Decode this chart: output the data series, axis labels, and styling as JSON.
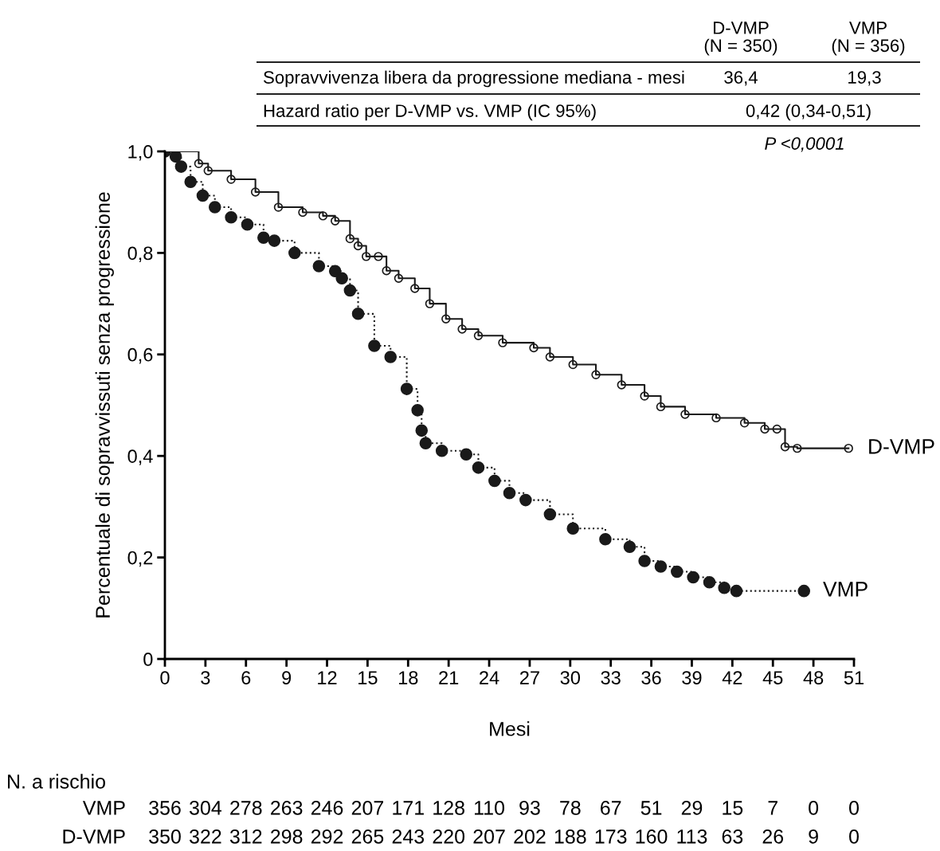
{
  "chart_data": {
    "type": "step",
    "xlabel": "Mesi",
    "ylabel": "Percentuale di sopravvissuti senza progressione",
    "xlim": [
      0,
      51
    ],
    "ylim": [
      0,
      1
    ],
    "xticks": [
      0,
      3,
      6,
      9,
      12,
      15,
      18,
      21,
      24,
      27,
      30,
      33,
      36,
      39,
      42,
      45,
      48,
      51
    ],
    "yticks": [
      {
        "value": 0,
        "label": "0"
      },
      {
        "value": 0.2,
        "label": "0,2"
      },
      {
        "value": 0.4,
        "label": "0,4"
      },
      {
        "value": 0.6,
        "label": "0,6"
      },
      {
        "value": 0.8,
        "label": "0,8"
      },
      {
        "value": 1,
        "label": "1,0"
      }
    ],
    "grid": false,
    "legend": false,
    "series": [
      {
        "name": "D-VMP",
        "color": "#1a1a1a",
        "marker": "circle",
        "line_style": "solid",
        "x": [
          0,
          2.5,
          3.2,
          4.9,
          6.7,
          8.4,
          10.2,
          11.7,
          12.6,
          13.7,
          14.3,
          14.9,
          15.8,
          16.4,
          17.3,
          18.5,
          19.6,
          20.8,
          22.0,
          23.2,
          25,
          27.3,
          28.5,
          30.2,
          31.9,
          33.8,
          35.5,
          36.7,
          38.5,
          40.8,
          42.9,
          44.4,
          45.3,
          45.9,
          46.8,
          50.6
        ],
        "values": [
          1.0,
          0.976,
          0.962,
          0.945,
          0.92,
          0.89,
          0.88,
          0.873,
          0.863,
          0.828,
          0.814,
          0.793,
          0.793,
          0.765,
          0.75,
          0.73,
          0.7,
          0.67,
          0.65,
          0.637,
          0.623,
          0.613,
          0.595,
          0.58,
          0.56,
          0.54,
          0.518,
          0.497,
          0.482,
          0.475,
          0.465,
          0.453,
          0.453,
          0.418,
          0.415,
          0.415
        ]
      },
      {
        "name": "VMP",
        "color": "#1a1a1a",
        "marker": "circle",
        "line_style": "dotted",
        "x": [
          0,
          0.8,
          1.2,
          1.9,
          2.8,
          3.7,
          4.9,
          6.1,
          7.3,
          8.1,
          9.6,
          11.4,
          12.6,
          13.1,
          13.7,
          14.3,
          15.5,
          16.7,
          17.9,
          18.7,
          19.0,
          19.3,
          20.5,
          22.3,
          23.2,
          24.4,
          25.5,
          26.7,
          28.5,
          30.2,
          32.6,
          34.4,
          35.5,
          36.7,
          37.9,
          39.1,
          40.3,
          41.4,
          42.3,
          47.3
        ],
        "values": [
          1.0,
          0.99,
          0.97,
          0.94,
          0.913,
          0.89,
          0.87,
          0.856,
          0.83,
          0.824,
          0.8,
          0.774,
          0.764,
          0.75,
          0.726,
          0.68,
          0.617,
          0.595,
          0.532,
          0.49,
          0.45,
          0.425,
          0.41,
          0.403,
          0.377,
          0.351,
          0.327,
          0.313,
          0.285,
          0.257,
          0.236,
          0.221,
          0.193,
          0.182,
          0.172,
          0.161,
          0.151,
          0.14,
          0.134,
          0.134
        ]
      }
    ],
    "annotations": [
      "D-VMP\n(N = 350)",
      "VMP\n(N = 356)",
      "Sopravvivenza libera da progressione mediana - mesi",
      "36,4",
      "19,3",
      "Hazard ratio per D-VMP vs. VMP (IC 95%)",
      "0,42 (0,34-0,51)",
      "P <0,0001",
      "N. a rischio",
      "VMP",
      "356",
      "304",
      "278",
      "263",
      "246",
      "207",
      "171",
      "128",
      "110",
      "93",
      "78",
      "67",
      "51",
      "29",
      "15",
      "7",
      "0",
      "0",
      "D-VMP",
      "350",
      "322",
      "312",
      "298",
      "292",
      "265",
      "243",
      "220",
      "207",
      "202",
      "188",
      "173",
      "160",
      "113",
      "63",
      "26",
      "9",
      "0"
    ]
  }
}
